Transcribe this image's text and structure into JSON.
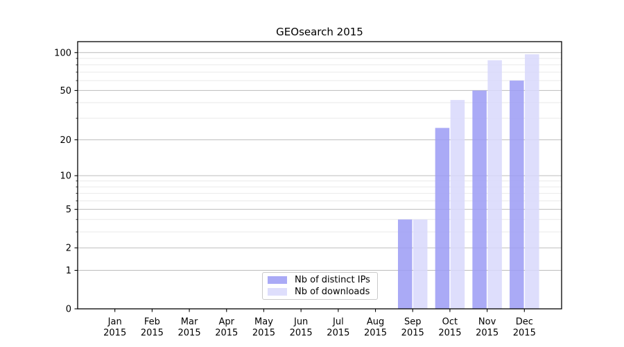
{
  "chart_data": {
    "type": "bar",
    "title": "GEOsearch 2015",
    "categories": [
      {
        "month": "Jan",
        "year": "2015"
      },
      {
        "month": "Feb",
        "year": "2015"
      },
      {
        "month": "Mar",
        "year": "2015"
      },
      {
        "month": "Apr",
        "year": "2015"
      },
      {
        "month": "May",
        "year": "2015"
      },
      {
        "month": "Jun",
        "year": "2015"
      },
      {
        "month": "Jul",
        "year": "2015"
      },
      {
        "month": "Aug",
        "year": "2015"
      },
      {
        "month": "Sep",
        "year": "2015"
      },
      {
        "month": "Oct",
        "year": "2015"
      },
      {
        "month": "Nov",
        "year": "2015"
      },
      {
        "month": "Dec",
        "year": "2015"
      }
    ],
    "series": [
      {
        "name": "Nb of distinct IPs",
        "color": "#9b9bf5",
        "values": [
          0,
          0,
          0,
          0,
          0,
          0,
          0,
          0,
          4,
          25,
          50,
          60
        ]
      },
      {
        "name": "Nb of downloads",
        "color": "#d8d8fb",
        "values": [
          0,
          0,
          0,
          0,
          0,
          0,
          0,
          0,
          4,
          42,
          87,
          97
        ]
      }
    ],
    "bar_opacity": 0.85,
    "y_axis": {
      "scale": "log1p",
      "ylim": [
        0,
        122
      ],
      "major_ticks": [
        0,
        1,
        2,
        5,
        10,
        20,
        50,
        100
      ],
      "minor_ticks": [
        3,
        4,
        6,
        7,
        8,
        9,
        30,
        40,
        60,
        70,
        80,
        90
      ]
    },
    "grid": {
      "major_color": "#bcbcbc",
      "minor_color": "#e9e9e9"
    },
    "legend": {
      "position": "bottom-center"
    }
  }
}
